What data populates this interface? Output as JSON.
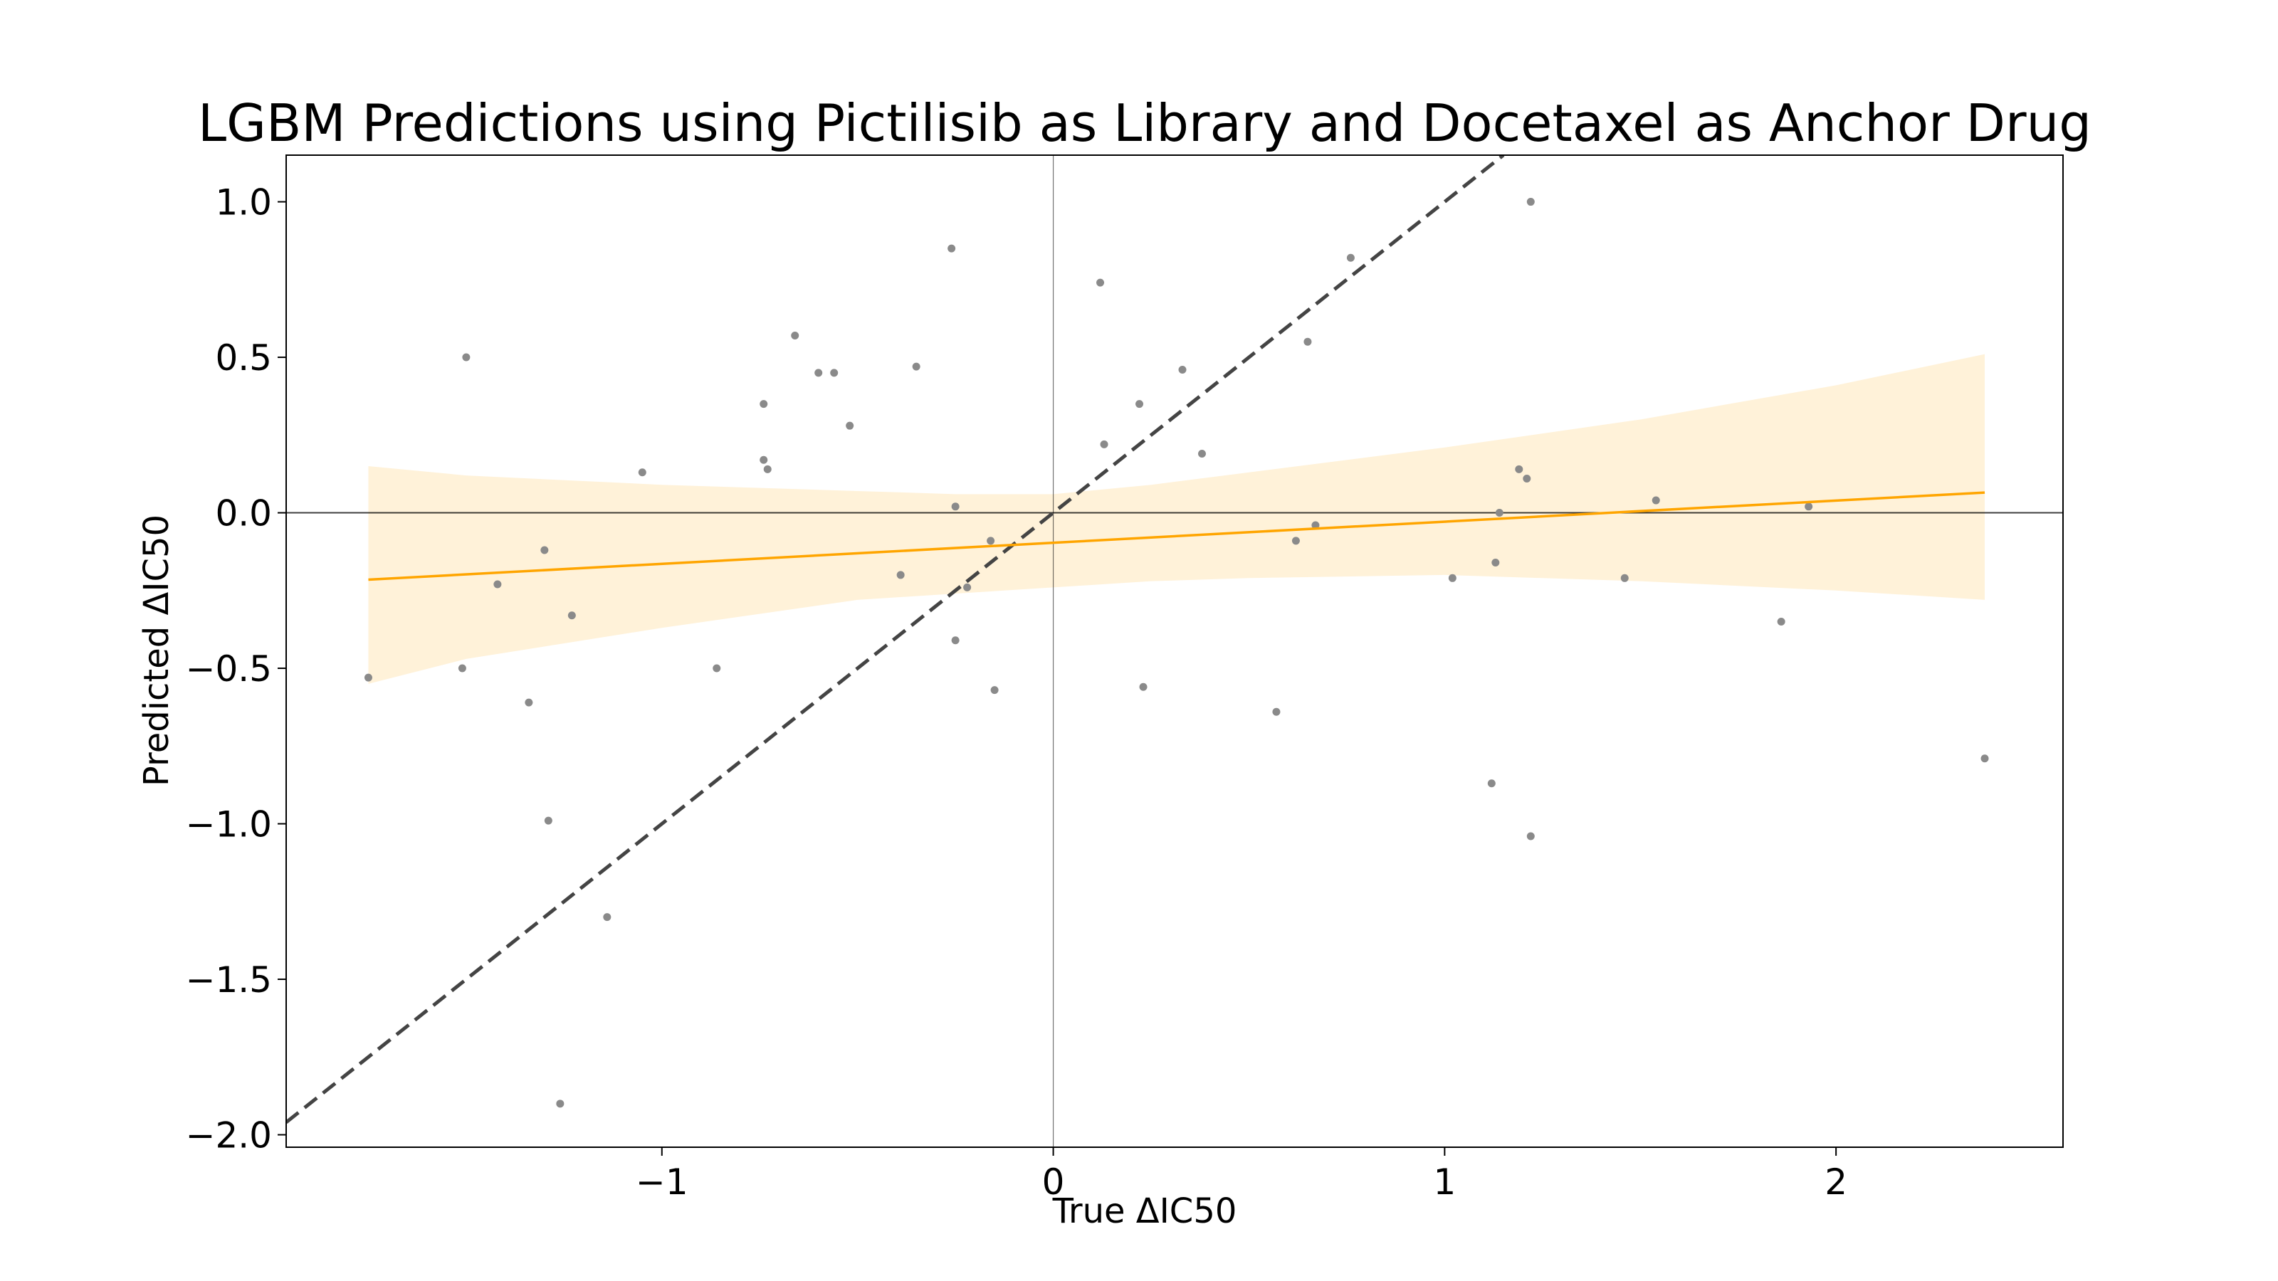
{
  "chart_data": {
    "type": "scatter",
    "title": "LGBM Predictions using Pictilisib as Library and Docetaxel as Anchor Drug",
    "xlabel": "True ΔIC50",
    "ylabel": "Predicted ΔIC50",
    "xlim": [
      -1.96,
      2.58
    ],
    "ylim": [
      -2.04,
      1.15
    ],
    "xticks": [
      -1,
      0,
      1,
      2
    ],
    "xtick_labels": [
      "−1",
      "0",
      "1",
      "2"
    ],
    "yticks": [
      -2.0,
      -1.5,
      -1.0,
      -0.5,
      0.0,
      0.5,
      1.0
    ],
    "ytick_labels": [
      "−2.0",
      "−1.5",
      "−1.0",
      "−0.5",
      "0.0",
      "0.5",
      "1.0"
    ],
    "grid": false,
    "colors": {
      "points": "#8a8a8a",
      "fit_line": "#ffa500",
      "confidence_band": "#ffa500",
      "identity_line": "#444444",
      "zero_lines": "#000000"
    },
    "points": [
      {
        "x": -1.75,
        "y": -0.53
      },
      {
        "x": -1.5,
        "y": 0.5
      },
      {
        "x": -1.51,
        "y": -0.5
      },
      {
        "x": -1.42,
        "y": -0.23
      },
      {
        "x": -1.34,
        "y": -0.61
      },
      {
        "x": -1.3,
        "y": -0.12
      },
      {
        "x": -1.29,
        "y": -0.99
      },
      {
        "x": -1.26,
        "y": -1.9
      },
      {
        "x": -1.23,
        "y": -0.33
      },
      {
        "x": -1.14,
        "y": -1.3
      },
      {
        "x": -1.05,
        "y": 0.13
      },
      {
        "x": -0.86,
        "y": -0.5
      },
      {
        "x": -0.74,
        "y": 0.17
      },
      {
        "x": -0.73,
        "y": 0.14
      },
      {
        "x": -0.74,
        "y": 0.35
      },
      {
        "x": -0.66,
        "y": 0.57
      },
      {
        "x": -0.6,
        "y": 0.45
      },
      {
        "x": -0.56,
        "y": 0.45
      },
      {
        "x": -0.52,
        "y": 0.28
      },
      {
        "x": -0.39,
        "y": -0.2
      },
      {
        "x": -0.35,
        "y": 0.47
      },
      {
        "x": -0.26,
        "y": 0.85
      },
      {
        "x": -0.25,
        "y": 0.02
      },
      {
        "x": -0.25,
        "y": -0.41
      },
      {
        "x": -0.22,
        "y": -0.24
      },
      {
        "x": -0.16,
        "y": -0.09
      },
      {
        "x": -0.15,
        "y": -0.57
      },
      {
        "x": 0.12,
        "y": 0.74
      },
      {
        "x": 0.13,
        "y": 0.22
      },
      {
        "x": 0.22,
        "y": 0.35
      },
      {
        "x": 0.23,
        "y": -0.56
      },
      {
        "x": 0.33,
        "y": 0.46
      },
      {
        "x": 0.38,
        "y": 0.19
      },
      {
        "x": 0.57,
        "y": -0.64
      },
      {
        "x": 0.62,
        "y": -0.09
      },
      {
        "x": 0.65,
        "y": 0.55
      },
      {
        "x": 0.67,
        "y": -0.04
      },
      {
        "x": 0.76,
        "y": 0.82
      },
      {
        "x": 1.02,
        "y": -0.21
      },
      {
        "x": 1.12,
        "y": -0.87
      },
      {
        "x": 1.13,
        "y": -0.16
      },
      {
        "x": 1.14,
        "y": 0.0
      },
      {
        "x": 1.19,
        "y": 0.14
      },
      {
        "x": 1.21,
        "y": 0.11
      },
      {
        "x": 1.22,
        "y": 1.0
      },
      {
        "x": 1.22,
        "y": -1.04
      },
      {
        "x": 1.46,
        "y": -0.21
      },
      {
        "x": 1.54,
        "y": 0.04
      },
      {
        "x": 1.86,
        "y": -0.35
      },
      {
        "x": 1.93,
        "y": 0.02
      },
      {
        "x": 2.38,
        "y": -0.79
      }
    ],
    "regression_line": {
      "x": [
        -1.75,
        2.38
      ],
      "y": [
        -0.215,
        0.065
      ]
    },
    "confidence_band": {
      "x": [
        -1.75,
        -1.5,
        -1.0,
        -0.5,
        -0.25,
        0.0,
        0.25,
        0.5,
        1.0,
        1.5,
        2.0,
        2.38
      ],
      "upper": [
        0.15,
        0.12,
        0.09,
        0.07,
        0.06,
        0.06,
        0.09,
        0.13,
        0.21,
        0.3,
        0.41,
        0.51
      ],
      "lower": [
        -0.55,
        -0.47,
        -0.37,
        -0.28,
        -0.26,
        -0.24,
        -0.22,
        -0.21,
        -0.2,
        -0.22,
        -0.25,
        -0.28
      ]
    },
    "identity_line": {
      "x": [
        -1.96,
        1.15
      ],
      "y": [
        -1.96,
        1.15
      ]
    },
    "reference_lines": {
      "x": 0,
      "y": 0
    }
  }
}
